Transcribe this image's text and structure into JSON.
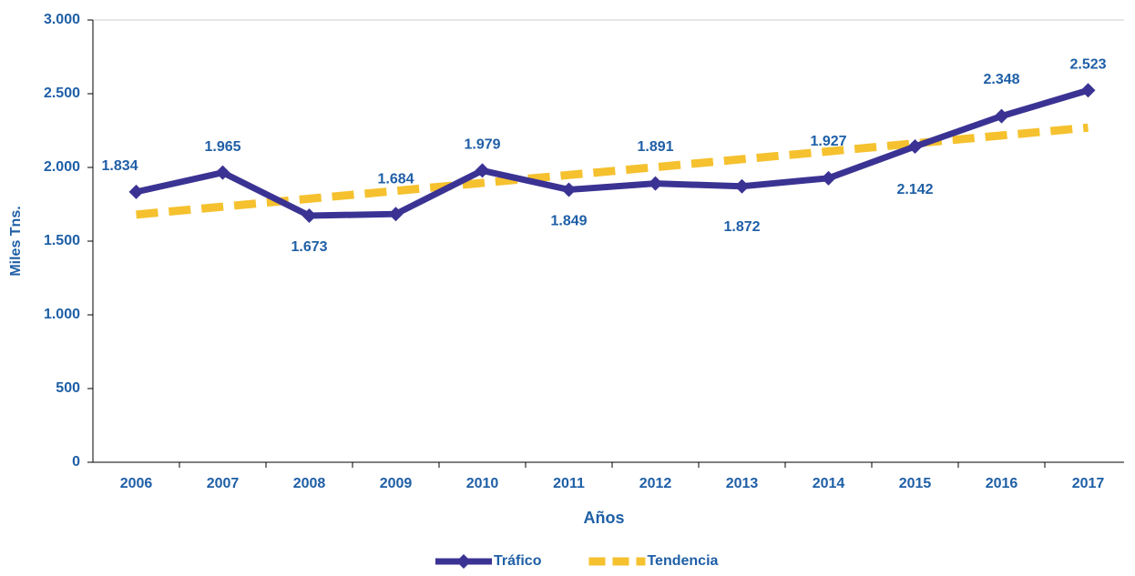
{
  "chart_data": {
    "type": "line",
    "xlabel": "Años",
    "ylabel": "Miles Tns.",
    "categories": [
      "2006",
      "2007",
      "2008",
      "2009",
      "2010",
      "2011",
      "2012",
      "2013",
      "2014",
      "2015",
      "2016",
      "2017"
    ],
    "series": [
      {
        "name": "Tráfico",
        "color": "#3b3393",
        "style": "solid",
        "marker": "diamond",
        "values": [
          1834,
          1965,
          1673,
          1684,
          1979,
          1849,
          1891,
          1872,
          1927,
          2142,
          2348,
          2523
        ],
        "value_labels": [
          "1.834",
          "1.965",
          "1.673",
          "1.684",
          "1.979",
          "1.849",
          "1.891",
          "1.872",
          "1.927",
          "2.142",
          "2.348",
          "2.523"
        ]
      },
      {
        "name": "Tendencia",
        "color": "#f5c12e",
        "style": "dashed",
        "values": [
          1680,
          1734,
          1788,
          1841,
          1895,
          1949,
          2002,
          2056,
          2109,
          2163,
          2217,
          2270
        ]
      }
    ],
    "ylim": [
      0,
      3000
    ],
    "yticks": [
      0,
      500,
      {
        "value": 1000,
        "label": "1.000"
      },
      {
        "value": 1500,
        "label": "1.500"
      },
      {
        "value": 2000,
        "label": "2.000"
      },
      {
        "value": 2500,
        "label": "2.500"
      },
      {
        "value": 3000,
        "label": "3.000"
      }
    ],
    "grid": false,
    "legend": "bottom"
  }
}
